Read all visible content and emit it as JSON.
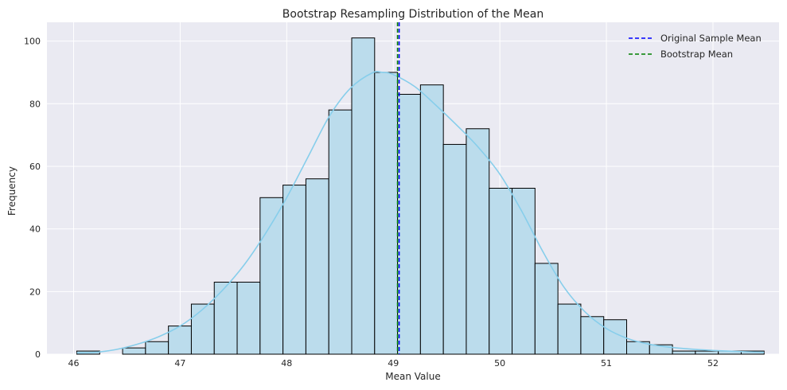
{
  "chart_data": {
    "type": "bar",
    "subtype": "histogram",
    "title": "Bootstrap Resampling Distribution of the Mean",
    "xlabel": "Mean Value",
    "ylabel": "Frequency",
    "xlim": [
      45.75,
      52.62
    ],
    "ylim": [
      0,
      106
    ],
    "xticks": [
      46,
      47,
      48,
      49,
      50,
      51,
      52
    ],
    "yticks": [
      0,
      20,
      40,
      60,
      80,
      100
    ],
    "grid": true,
    "bins": {
      "edges": [
        46.03,
        46.245,
        46.46,
        46.675,
        46.89,
        47.105,
        47.32,
        47.535,
        47.75,
        47.965,
        48.18,
        48.395,
        48.61,
        48.825,
        49.04,
        49.255,
        49.47,
        49.685,
        49.9,
        50.115,
        50.33,
        50.545,
        50.76,
        50.975,
        51.19,
        51.405,
        51.62,
        51.835,
        52.05,
        52.265,
        52.48
      ],
      "counts": [
        1,
        0,
        2,
        4,
        9,
        16,
        23,
        23,
        50,
        54,
        56,
        78,
        101,
        90,
        83,
        86,
        67,
        72,
        53,
        53,
        29,
        16,
        12,
        11,
        4,
        3,
        1,
        1,
        1,
        1
      ],
      "fill": "#bbdcec",
      "edge_color": "#000000"
    },
    "kde": {
      "color": "#87ceeb",
      "x": [
        46.03,
        46.2,
        46.4,
        46.6,
        46.8,
        47.0,
        47.2,
        47.4,
        47.6,
        47.8,
        48.0,
        48.2,
        48.4,
        48.6,
        48.8,
        48.9,
        49.0,
        49.2,
        49.4,
        49.6,
        49.8,
        50.0,
        50.2,
        50.4,
        50.6,
        50.8,
        51.0,
        51.2,
        51.4,
        51.6,
        51.8,
        52.0,
        52.2,
        52.48
      ],
      "y": [
        0.4,
        0.6,
        1.5,
        3.2,
        5.6,
        9.0,
        14.0,
        20.5,
        28.5,
        38.5,
        50.0,
        63.0,
        76.0,
        85.0,
        89.8,
        90.0,
        89.3,
        85.5,
        79.5,
        73.0,
        66.0,
        57.5,
        46.0,
        33.0,
        21.5,
        13.5,
        8.2,
        5.0,
        3.2,
        2.2,
        1.6,
        1.2,
        0.9,
        0.6
      ]
    },
    "vlines": [
      {
        "name": "Original Sample Mean",
        "x": 49.055,
        "color": "#0000ff",
        "style": "dashed"
      },
      {
        "name": "Bootstrap Mean",
        "x": 49.04,
        "color": "#008000",
        "style": "dashed"
      }
    ],
    "legend": {
      "placement": "top-right",
      "entries": [
        {
          "label": "Original Sample Mean",
          "color": "#0000ff"
        },
        {
          "label": "Bootstrap Mean",
          "color": "#008000"
        }
      ]
    },
    "colors": {
      "background": "#eaeaf2",
      "grid": "#ffffff"
    }
  }
}
